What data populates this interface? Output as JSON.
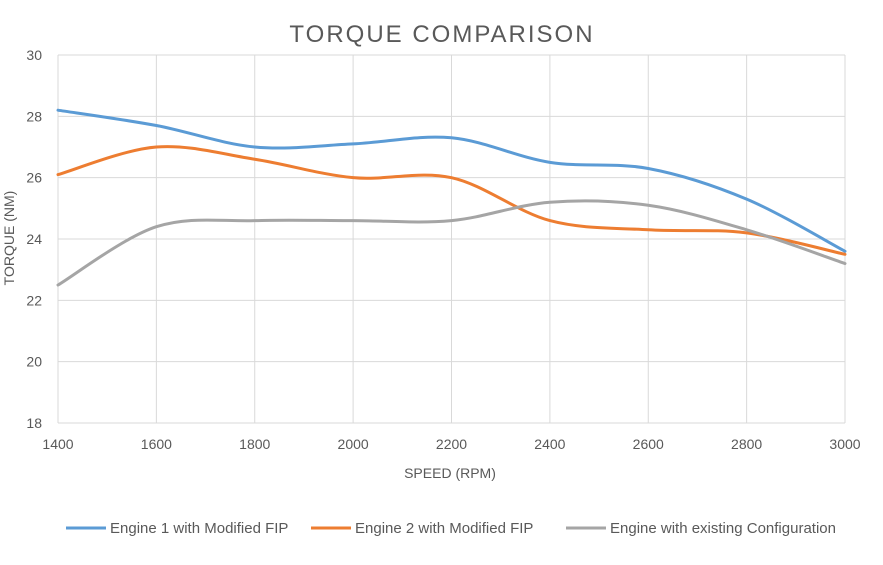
{
  "chart_data": {
    "type": "line",
    "title": "TORQUE COMPARISON",
    "xlabel": "SPEED (RPM)",
    "ylabel": "TORQUE (NM)",
    "x": [
      1400,
      1600,
      1800,
      2000,
      2200,
      2400,
      2600,
      2800,
      3000
    ],
    "xlim": [
      1400,
      3000
    ],
    "ylim": [
      18,
      30
    ],
    "x_ticks": [
      "1400",
      "1600",
      "1800",
      "2000",
      "2200",
      "2400",
      "2600",
      "2800",
      "3000"
    ],
    "y_ticks": [
      "18",
      "20",
      "22",
      "24",
      "26",
      "28",
      "30"
    ],
    "grid": true,
    "legend_position": "bottom",
    "series": [
      {
        "name": "Engine 1 with Modified FIP",
        "color": "#5B9BD5",
        "values": [
          28.2,
          27.7,
          27.0,
          27.1,
          27.3,
          26.5,
          26.3,
          25.3,
          23.6
        ]
      },
      {
        "name": "Engine 2 with Modified FIP",
        "color": "#ED7D31",
        "values": [
          26.1,
          27.0,
          26.6,
          26.0,
          26.0,
          24.6,
          24.3,
          24.2,
          23.5
        ]
      },
      {
        "name": "Engine with existing Configuration",
        "color": "#A5A5A5",
        "values": [
          22.5,
          24.4,
          24.6,
          24.6,
          24.6,
          25.2,
          25.1,
          24.3,
          23.2
        ]
      }
    ]
  }
}
